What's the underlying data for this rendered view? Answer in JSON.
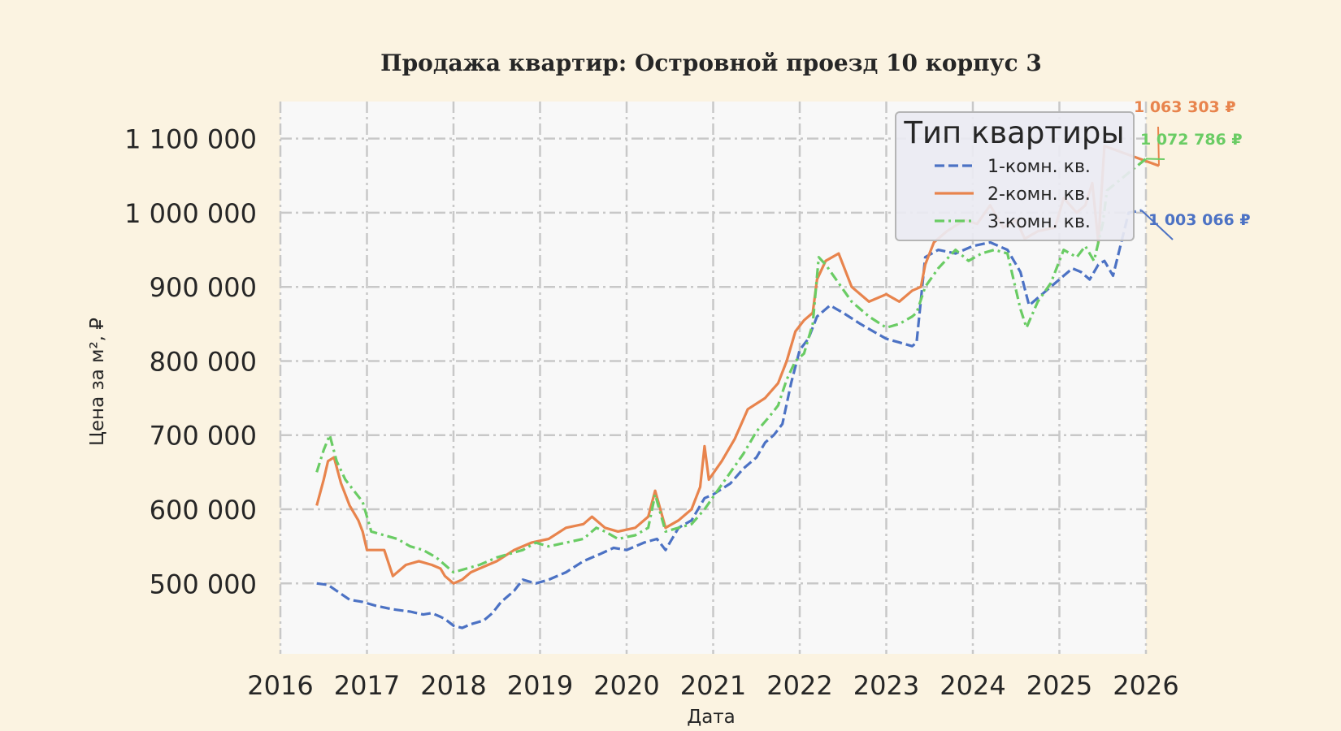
{
  "chart_data": {
    "type": "line",
    "title": "Продажа квартир: Островной проезд 10 корпус 3",
    "xlabel": "Дата",
    "ylabel": "Цена за м², ₽",
    "xlim": [
      2016,
      2026
    ],
    "ylim": [
      405000,
      1150000
    ],
    "x_ticks": [
      2016,
      2017,
      2018,
      2019,
      2020,
      2021,
      2022,
      2023,
      2024,
      2025,
      2026
    ],
    "x_tick_labels": [
      "2016",
      "2017",
      "2018",
      "2019",
      "2020",
      "2021",
      "2022",
      "2023",
      "2024",
      "2025",
      "2026"
    ],
    "y_ticks": [
      500000,
      600000,
      700000,
      800000,
      900000,
      1000000,
      1100000
    ],
    "y_tick_labels": [
      "500 000",
      "600 000",
      "700 000",
      "800 000",
      "900 000",
      "1 000 000",
      "1 100 000"
    ],
    "grid": true,
    "legend": {
      "title": "Тип квартиры",
      "placement": "top-right"
    },
    "series": [
      {
        "name": "1-комн. кв.",
        "color": "#4c72c4",
        "dash": "dashed",
        "x": [
          2016.42,
          2016.55,
          2016.65,
          2016.8,
          2016.95,
          2017.1,
          2017.3,
          2017.5,
          2017.65,
          2017.75,
          2017.85,
          2017.9,
          2018.0,
          2018.1,
          2018.2,
          2018.35,
          2018.45,
          2018.55,
          2018.7,
          2018.8,
          2018.95,
          2019.1,
          2019.3,
          2019.5,
          2019.7,
          2019.85,
          2020.0,
          2020.2,
          2020.35,
          2020.45,
          2020.6,
          2020.75,
          2020.9,
          2021.0,
          2021.2,
          2021.35,
          2021.5,
          2021.6,
          2021.7,
          2021.8,
          2021.9,
          2022.0,
          2022.1,
          2022.2,
          2022.35,
          2022.5,
          2022.7,
          2022.85,
          2023.0,
          2023.15,
          2023.3,
          2023.35,
          2023.45,
          2023.6,
          2023.8,
          2024.0,
          2024.2,
          2024.4,
          2024.55,
          2024.65,
          2024.8,
          2024.95,
          2025.05,
          2025.15,
          2025.25,
          2025.35,
          2025.45,
          2025.52,
          2025.62,
          2025.8,
          2025.95
        ],
        "values": [
          500000,
          498000,
          490000,
          478000,
          475000,
          470000,
          465000,
          462000,
          458000,
          460000,
          455000,
          452000,
          443000,
          440000,
          445000,
          450000,
          460000,
          475000,
          490000,
          505000,
          500000,
          505000,
          515000,
          530000,
          540000,
          548000,
          545000,
          555000,
          560000,
          545000,
          575000,
          585000,
          615000,
          620000,
          635000,
          655000,
          670000,
          690000,
          700000,
          715000,
          770000,
          815000,
          830000,
          860000,
          875000,
          865000,
          850000,
          840000,
          830000,
          825000,
          820000,
          825000,
          940000,
          950000,
          945000,
          955000,
          960000,
          950000,
          920000,
          875000,
          890000,
          905000,
          915000,
          925000,
          920000,
          910000,
          930000,
          935000,
          915000,
          1000000,
          1003066
        ]
      },
      {
        "name": "2-комн. кв.",
        "color": "#e8844d",
        "dash": "solid",
        "x": [
          2016.42,
          2016.5,
          2016.55,
          2016.62,
          2016.7,
          2016.8,
          2016.9,
          2016.95,
          2017.0,
          2017.1,
          2017.2,
          2017.3,
          2017.45,
          2017.6,
          2017.75,
          2017.85,
          2017.9,
          2018.0,
          2018.1,
          2018.2,
          2018.3,
          2018.5,
          2018.7,
          2018.9,
          2019.1,
          2019.3,
          2019.5,
          2019.6,
          2019.75,
          2019.9,
          2020.1,
          2020.25,
          2020.33,
          2020.45,
          2020.6,
          2020.75,
          2020.85,
          2020.9,
          2020.95,
          2021.1,
          2021.25,
          2021.4,
          2021.6,
          2021.75,
          2021.85,
          2021.95,
          2022.05,
          2022.15,
          2022.2,
          2022.3,
          2022.45,
          2022.6,
          2022.8,
          2023.0,
          2023.15,
          2023.3,
          2023.4,
          2023.45,
          2023.55,
          2023.7,
          2023.9,
          2024.05,
          2024.2,
          2024.35,
          2024.5,
          2024.6,
          2024.75,
          2024.95,
          2025.05,
          2025.2,
          2025.3,
          2025.38,
          2025.45,
          2025.52,
          2026.15
        ],
        "values": [
          605000,
          640000,
          665000,
          670000,
          635000,
          605000,
          585000,
          570000,
          545000,
          545000,
          545000,
          510000,
          525000,
          530000,
          525000,
          520000,
          510000,
          500000,
          505000,
          515000,
          520000,
          530000,
          545000,
          555000,
          560000,
          575000,
          580000,
          590000,
          575000,
          570000,
          575000,
          590000,
          625000,
          575000,
          585000,
          600000,
          630000,
          685000,
          640000,
          665000,
          695000,
          735000,
          750000,
          770000,
          800000,
          840000,
          855000,
          865000,
          910000,
          935000,
          945000,
          900000,
          880000,
          890000,
          880000,
          895000,
          900000,
          930000,
          960000,
          975000,
          990000,
          985000,
          1010000,
          980000,
          990000,
          965000,
          975000,
          980000,
          1020000,
          1000000,
          1010000,
          1040000,
          960000,
          1090000,
          1063303
        ]
      },
      {
        "name": "3-комн. кв.",
        "color": "#6acc64",
        "dash": "dashdot",
        "x": [
          2016.42,
          2016.5,
          2016.57,
          2016.65,
          2016.75,
          2016.85,
          2016.95,
          2017.05,
          2017.2,
          2017.35,
          2017.5,
          2017.65,
          2017.8,
          2017.9,
          2018.0,
          2018.15,
          2018.3,
          2018.5,
          2018.65,
          2018.8,
          2018.95,
          2019.1,
          2019.3,
          2019.5,
          2019.65,
          2019.75,
          2019.9,
          2020.1,
          2020.25,
          2020.33,
          2020.45,
          2020.6,
          2020.75,
          2020.9,
          2021.05,
          2021.2,
          2021.35,
          2021.5,
          2021.65,
          2021.75,
          2021.85,
          2021.95,
          2022.05,
          2022.15,
          2022.22,
          2022.3,
          2022.45,
          2022.6,
          2022.8,
          2023.0,
          2023.15,
          2023.3,
          2023.35,
          2023.45,
          2023.6,
          2023.8,
          2023.95,
          2024.1,
          2024.25,
          2024.4,
          2024.55,
          2024.62,
          2024.75,
          2024.9,
          2025.05,
          2025.2,
          2025.3,
          2025.4,
          2025.5,
          2025.55,
          2026.0
        ],
        "values": [
          650000,
          680000,
          700000,
          665000,
          640000,
          625000,
          610000,
          570000,
          565000,
          560000,
          550000,
          545000,
          535000,
          525000,
          515000,
          520000,
          525000,
          535000,
          540000,
          545000,
          555000,
          550000,
          555000,
          560000,
          575000,
          570000,
          560000,
          565000,
          575000,
          620000,
          570000,
          575000,
          580000,
          600000,
          625000,
          650000,
          675000,
          705000,
          725000,
          740000,
          775000,
          800000,
          810000,
          850000,
          940000,
          930000,
          905000,
          880000,
          860000,
          845000,
          850000,
          860000,
          865000,
          900000,
          925000,
          950000,
          935000,
          945000,
          950000,
          945000,
          870000,
          845000,
          880000,
          905000,
          950000,
          940000,
          955000,
          935000,
          985000,
          1030000,
          1072786
        ]
      }
    ],
    "end_labels": [
      {
        "series": 1,
        "text": "1 063 303 ₽"
      },
      {
        "series": 2,
        "text": "1 072 786 ₽"
      },
      {
        "series": 0,
        "text": "1 003 066 ₽"
      }
    ]
  }
}
